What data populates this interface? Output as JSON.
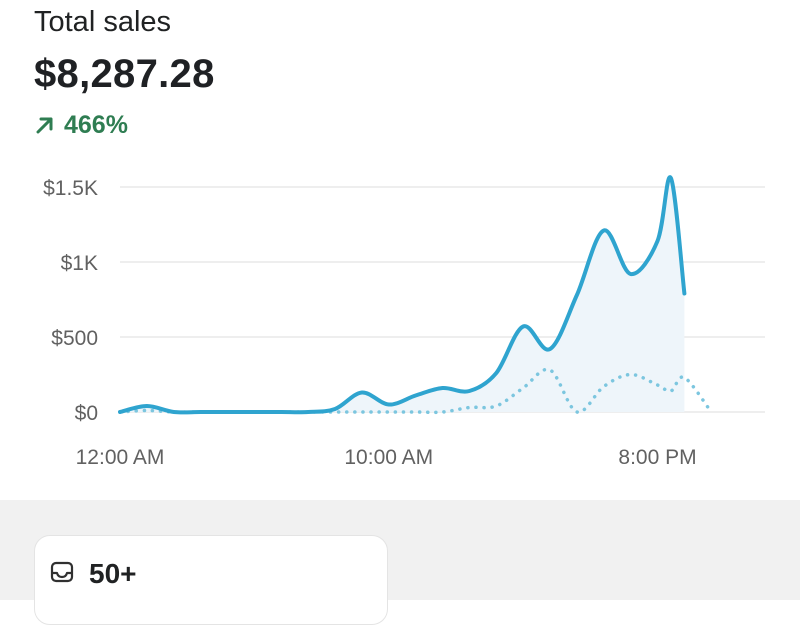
{
  "header": {
    "title": "Total sales",
    "total_value": "$8,287.28",
    "change_percent": "466%",
    "change_icon": "arrow-up-right-icon",
    "change_color": "#2f7d52"
  },
  "chart_data": {
    "type": "line",
    "title": "",
    "xlabel": "",
    "ylabel": "",
    "ylim": [
      0,
      1500
    ],
    "y_ticks": [
      {
        "value": 0,
        "label": "$0"
      },
      {
        "value": 500,
        "label": "$500"
      },
      {
        "value": 1000,
        "label": "$1K"
      },
      {
        "value": 1500,
        "label": "$1.5K"
      }
    ],
    "x_range": [
      0,
      24
    ],
    "x_ticks": [
      {
        "value": 0,
        "label": "12:00 AM"
      },
      {
        "value": 10,
        "label": "10:00 AM"
      },
      {
        "value": 20,
        "label": "8:00 PM"
      }
    ],
    "grid": true,
    "legend": "none",
    "colors": {
      "current": "#2fa4cf",
      "comparison": "#7cc6df",
      "fill": "#eef5fa",
      "grid": "#e3e3e3"
    },
    "series": [
      {
        "style": "solid",
        "x": [
          0,
          1,
          2,
          3,
          4,
          5,
          6,
          7,
          8,
          9,
          10,
          11,
          12,
          13,
          14,
          15,
          16,
          17,
          18,
          19,
          20,
          20.5,
          21
        ],
        "y": [
          0,
          40,
          0,
          0,
          0,
          0,
          0,
          0,
          20,
          130,
          50,
          110,
          160,
          140,
          260,
          570,
          420,
          780,
          1210,
          920,
          1140,
          1560,
          790
        ]
      },
      {
        "style": "dotted",
        "x": [
          0,
          1,
          2,
          3,
          4,
          5,
          6,
          7,
          8,
          9,
          10,
          11,
          12,
          13,
          14,
          15,
          16,
          17,
          18,
          19,
          20,
          20.5,
          21,
          22
        ],
        "y": [
          0,
          10,
          0,
          0,
          0,
          0,
          0,
          0,
          0,
          0,
          0,
          0,
          0,
          30,
          40,
          160,
          280,
          0,
          170,
          250,
          180,
          140,
          230,
          0
        ]
      }
    ]
  },
  "summary_card": {
    "icon": "inbox-icon",
    "value": "50+"
  }
}
